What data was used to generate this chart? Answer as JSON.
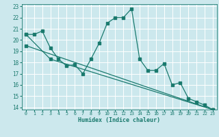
{
  "xlabel": "Humidex (Indice chaleur)",
  "xlim": [
    -0.5,
    23.5
  ],
  "ylim": [
    13.8,
    23.2
  ],
  "yticks": [
    14,
    15,
    16,
    17,
    18,
    19,
    20,
    21,
    22,
    23
  ],
  "xticks": [
    0,
    1,
    2,
    3,
    4,
    5,
    6,
    7,
    8,
    9,
    10,
    11,
    12,
    13,
    14,
    15,
    16,
    17,
    18,
    19,
    20,
    21,
    22,
    23
  ],
  "bg_color": "#cce8ed",
  "line_color": "#1a7a6e",
  "grid_color": "#ffffff",
  "line1_x": [
    0,
    1,
    2,
    3,
    4,
    5,
    6,
    7,
    8,
    9,
    10,
    11,
    12,
    13,
    14,
    15,
    16,
    17,
    18,
    19,
    20,
    21,
    22,
    23
  ],
  "line1_y": [
    20.5,
    20.5,
    20.8,
    19.3,
    18.3,
    17.7,
    17.8,
    17.0,
    18.3,
    19.7,
    21.5,
    22.0,
    22.0,
    22.8,
    18.3,
    17.3,
    17.3,
    17.9,
    16.0,
    16.2,
    14.8,
    14.5,
    14.2,
    13.8
  ],
  "line2_x": [
    0,
    3,
    23
  ],
  "line2_y": [
    20.5,
    18.3,
    13.8
  ],
  "line3_x": [
    0,
    23
  ],
  "line3_y": [
    19.5,
    13.8
  ]
}
